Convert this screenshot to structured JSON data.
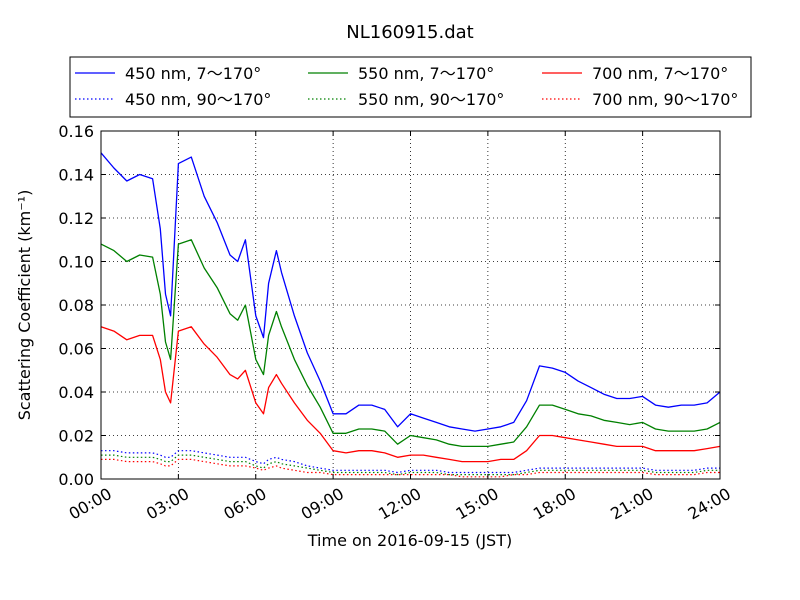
{
  "chart_data": {
    "type": "line",
    "title": "NL160915.dat",
    "xlabel": "Time on 2016-09-15 (JST)",
    "ylabel": "Scattering Coefficient (km⁻¹)",
    "xlim": [
      0,
      24
    ],
    "ylim": [
      0,
      0.16
    ],
    "x_ticks": [
      0,
      3,
      6,
      9,
      12,
      15,
      18,
      21,
      24
    ],
    "x_tick_labels": [
      "00:00",
      "03:00",
      "06:00",
      "09:00",
      "12:00",
      "15:00",
      "18:00",
      "21:00",
      "24:00"
    ],
    "y_ticks": [
      0,
      0.02,
      0.04,
      0.06,
      0.08,
      0.1,
      0.12,
      0.14,
      0.16
    ],
    "y_tick_labels": [
      "0.00",
      "0.02",
      "0.04",
      "0.06",
      "0.08",
      "0.10",
      "0.12",
      "0.14",
      "0.16"
    ],
    "grid": true,
    "legend_position": "top",
    "x": [
      0,
      0.5,
      1,
      1.5,
      2,
      2.3,
      2.5,
      2.7,
      3,
      3.5,
      4,
      4.5,
      5,
      5.3,
      5.6,
      6,
      6.3,
      6.5,
      6.8,
      7,
      7.5,
      8,
      8.5,
      9,
      9.5,
      10,
      10.5,
      11,
      11.5,
      12,
      12.5,
      13,
      13.5,
      14,
      14.5,
      15,
      15.5,
      16,
      16.5,
      17,
      17.5,
      18,
      18.5,
      19,
      19.5,
      20,
      20.5,
      21,
      21.5,
      22,
      22.5,
      23,
      23.5,
      24
    ],
    "series": [
      {
        "name": "450 nm, 7～170°",
        "color": "#0000ff",
        "style": "solid",
        "values": [
          0.15,
          0.143,
          0.137,
          0.14,
          0.138,
          0.115,
          0.085,
          0.075,
          0.145,
          0.148,
          0.13,
          0.118,
          0.103,
          0.1,
          0.11,
          0.075,
          0.065,
          0.09,
          0.105,
          0.095,
          0.075,
          0.058,
          0.045,
          0.03,
          0.03,
          0.034,
          0.034,
          0.032,
          0.024,
          0.03,
          0.028,
          0.026,
          0.024,
          0.023,
          0.022,
          0.023,
          0.024,
          0.026,
          0.036,
          0.052,
          0.051,
          0.049,
          0.045,
          0.042,
          0.039,
          0.037,
          0.037,
          0.038,
          0.034,
          0.033,
          0.034,
          0.034,
          0.035,
          0.04
        ]
      },
      {
        "name": "550 nm, 7～170°",
        "color": "#008000",
        "style": "solid",
        "values": [
          0.108,
          0.105,
          0.1,
          0.103,
          0.102,
          0.085,
          0.063,
          0.055,
          0.108,
          0.11,
          0.097,
          0.088,
          0.076,
          0.073,
          0.08,
          0.055,
          0.048,
          0.066,
          0.077,
          0.07,
          0.055,
          0.043,
          0.033,
          0.021,
          0.021,
          0.023,
          0.023,
          0.022,
          0.016,
          0.02,
          0.019,
          0.018,
          0.016,
          0.015,
          0.015,
          0.015,
          0.016,
          0.017,
          0.024,
          0.034,
          0.034,
          0.032,
          0.03,
          0.029,
          0.027,
          0.026,
          0.025,
          0.026,
          0.023,
          0.022,
          0.022,
          0.022,
          0.023,
          0.026
        ]
      },
      {
        "name": "700 nm, 7～170°",
        "color": "#ff0000",
        "style": "solid",
        "values": [
          0.07,
          0.068,
          0.064,
          0.066,
          0.066,
          0.055,
          0.04,
          0.035,
          0.068,
          0.07,
          0.062,
          0.056,
          0.048,
          0.046,
          0.05,
          0.035,
          0.03,
          0.042,
          0.048,
          0.044,
          0.035,
          0.027,
          0.021,
          0.013,
          0.012,
          0.013,
          0.013,
          0.012,
          0.01,
          0.011,
          0.011,
          0.01,
          0.009,
          0.008,
          0.008,
          0.008,
          0.009,
          0.009,
          0.013,
          0.02,
          0.02,
          0.019,
          0.018,
          0.017,
          0.016,
          0.015,
          0.015,
          0.015,
          0.013,
          0.013,
          0.013,
          0.013,
          0.014,
          0.015
        ]
      },
      {
        "name": "450 nm, 90～170°",
        "color": "#0000ff",
        "style": "dotted",
        "values": [
          0.013,
          0.013,
          0.012,
          0.012,
          0.012,
          0.011,
          0.01,
          0.01,
          0.013,
          0.013,
          0.012,
          0.011,
          0.01,
          0.01,
          0.01,
          0.008,
          0.007,
          0.009,
          0.01,
          0.009,
          0.008,
          0.006,
          0.005,
          0.004,
          0.004,
          0.004,
          0.004,
          0.004,
          0.003,
          0.004,
          0.004,
          0.004,
          0.003,
          0.003,
          0.003,
          0.003,
          0.003,
          0.003,
          0.004,
          0.005,
          0.005,
          0.005,
          0.005,
          0.005,
          0.005,
          0.005,
          0.005,
          0.005,
          0.004,
          0.004,
          0.004,
          0.004,
          0.005,
          0.005
        ]
      },
      {
        "name": "550 nm, 90～170°",
        "color": "#008000",
        "style": "dotted",
        "values": [
          0.011,
          0.011,
          0.01,
          0.01,
          0.01,
          0.009,
          0.008,
          0.008,
          0.011,
          0.011,
          0.01,
          0.009,
          0.008,
          0.008,
          0.008,
          0.006,
          0.005,
          0.007,
          0.008,
          0.007,
          0.006,
          0.005,
          0.004,
          0.003,
          0.003,
          0.003,
          0.003,
          0.003,
          0.002,
          0.003,
          0.003,
          0.003,
          0.002,
          0.002,
          0.002,
          0.002,
          0.002,
          0.002,
          0.003,
          0.004,
          0.004,
          0.004,
          0.004,
          0.004,
          0.004,
          0.004,
          0.004,
          0.004,
          0.003,
          0.003,
          0.003,
          0.003,
          0.004,
          0.004
        ]
      },
      {
        "name": "700 nm, 90～170°",
        "color": "#ff0000",
        "style": "dotted",
        "values": [
          0.009,
          0.009,
          0.008,
          0.008,
          0.008,
          0.007,
          0.006,
          0.006,
          0.009,
          0.009,
          0.008,
          0.007,
          0.006,
          0.006,
          0.006,
          0.005,
          0.004,
          0.005,
          0.006,
          0.005,
          0.004,
          0.003,
          0.003,
          0.002,
          0.002,
          0.002,
          0.002,
          0.002,
          0.002,
          0.002,
          0.002,
          0.002,
          0.002,
          0.001,
          0.001,
          0.001,
          0.001,
          0.002,
          0.002,
          0.003,
          0.003,
          0.003,
          0.003,
          0.003,
          0.003,
          0.003,
          0.003,
          0.003,
          0.002,
          0.002,
          0.002,
          0.002,
          0.003,
          0.003
        ]
      }
    ],
    "legend_order": [
      0,
      1,
      2,
      3,
      4,
      5
    ]
  }
}
